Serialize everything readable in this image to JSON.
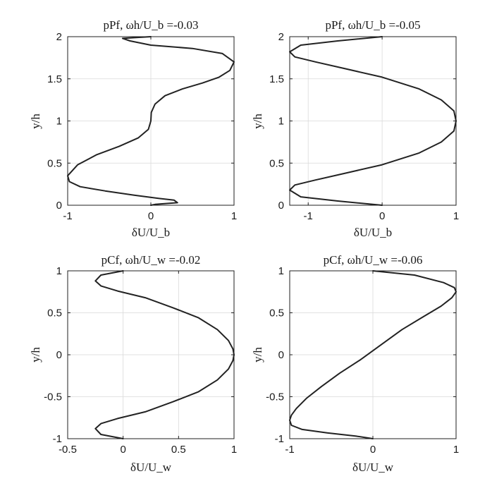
{
  "chart_data": [
    {
      "type": "line",
      "title": "pPf, ωh/U_b =-0.03",
      "xlabel": "δU/U_b",
      "ylabel": "y/h",
      "xlim": [
        -1,
        1
      ],
      "ylim": [
        0,
        2
      ],
      "grid": true,
      "xticks": [
        -1,
        0,
        1
      ],
      "xtick_labels": [
        "-1",
        "0",
        "1"
      ],
      "yticks": [
        0,
        0.5,
        1,
        1.5,
        2
      ],
      "ytick_labels": [
        "0",
        "0.5",
        "1",
        "1.5",
        "2"
      ],
      "series": [
        {
          "x": [
            0.0,
            -0.34,
            -0.25,
            0.0,
            0.5,
            0.86,
            1.0,
            0.95,
            0.82,
            0.62,
            0.38,
            0.17,
            0.05,
            0.005,
            0.0,
            -0.03,
            -0.15,
            -0.38,
            -0.65,
            -0.88,
            -1.0,
            -0.98,
            -0.85,
            -0.55,
            -0.2,
            0.1,
            0.28,
            0.32,
            0.05,
            0.0
          ],
          "y": [
            2.0,
            1.98,
            1.95,
            1.9,
            1.86,
            1.8,
            1.7,
            1.6,
            1.52,
            1.45,
            1.38,
            1.3,
            1.2,
            1.1,
            1.0,
            0.9,
            0.8,
            0.7,
            0.6,
            0.48,
            0.35,
            0.28,
            0.22,
            0.17,
            0.12,
            0.08,
            0.06,
            0.03,
            0.01,
            0.0
          ]
        }
      ]
    },
    {
      "type": "line",
      "title": "pPf, ωh/U_b =-0.05",
      "xlabel": "δU/U_b",
      "ylabel": "y/h",
      "xlim": [
        -1.25,
        1
      ],
      "ylim": [
        0,
        2
      ],
      "grid": true,
      "xticks": [
        -1,
        0,
        1
      ],
      "xtick_labels": [
        "-1",
        "0",
        "1"
      ],
      "yticks": [
        0,
        0.5,
        1,
        1.5,
        2
      ],
      "ytick_labels": [
        "0",
        "0.5",
        "1",
        "1.5",
        "2"
      ],
      "series": [
        {
          "x": [
            0.0,
            -0.6,
            -1.1,
            -1.25,
            -1.18,
            -0.9,
            -0.5,
            0.0,
            0.5,
            0.8,
            0.97,
            1.0,
            0.97,
            0.8,
            0.5,
            0.0,
            -0.5,
            -0.9,
            -1.18,
            -1.25,
            -1.1,
            -0.6,
            0.0
          ],
          "y": [
            2.0,
            1.95,
            1.9,
            1.82,
            1.76,
            1.7,
            1.62,
            1.52,
            1.38,
            1.25,
            1.12,
            1.0,
            0.88,
            0.75,
            0.62,
            0.48,
            0.38,
            0.3,
            0.24,
            0.18,
            0.1,
            0.05,
            0.0
          ]
        }
      ]
    },
    {
      "type": "line",
      "title": "pCf, ωh/U_w =-0.02",
      "xlabel": "δU/U_w",
      "ylabel": "y/h",
      "xlim": [
        -0.5,
        1
      ],
      "ylim": [
        -1,
        1
      ],
      "grid": true,
      "xticks": [
        -0.5,
        0,
        0.5,
        1
      ],
      "xtick_labels": [
        "-0.5",
        "0",
        "0.5",
        "1"
      ],
      "yticks": [
        -1,
        -0.5,
        0,
        0.5,
        1
      ],
      "ytick_labels": [
        "-1",
        "-0.5",
        "0",
        "0.5",
        "1"
      ],
      "series": [
        {
          "x": [
            0.0,
            -0.2,
            -0.25,
            -0.2,
            -0.05,
            0.2,
            0.45,
            0.68,
            0.85,
            0.95,
            0.99,
            1.0,
            0.99,
            0.95,
            0.85,
            0.68,
            0.45,
            0.2,
            -0.05,
            -0.2,
            -0.25,
            -0.2,
            0.0
          ],
          "y": [
            1.0,
            0.95,
            0.88,
            0.82,
            0.76,
            0.68,
            0.56,
            0.44,
            0.3,
            0.17,
            0.07,
            0.0,
            -0.07,
            -0.17,
            -0.3,
            -0.44,
            -0.56,
            -0.68,
            -0.76,
            -0.82,
            -0.88,
            -0.95,
            -1.0
          ]
        }
      ]
    },
    {
      "type": "line",
      "title": "pCf, ωh/U_w =-0.06",
      "xlabel": "δU/U_w",
      "ylabel": "y/h",
      "xlim": [
        -1,
        1
      ],
      "ylim": [
        -1,
        1
      ],
      "grid": true,
      "xticks": [
        -1,
        0,
        1
      ],
      "xtick_labels": [
        "-1",
        "0",
        "1"
      ],
      "yticks": [
        -1,
        -0.5,
        0,
        0.5,
        1
      ],
      "ytick_labels": [
        "-1",
        "-0.5",
        "0",
        "0.5",
        "1"
      ],
      "series": [
        {
          "x": [
            0.0,
            0.5,
            0.85,
            0.98,
            1.0,
            0.95,
            0.82,
            0.6,
            0.35,
            0.1,
            -0.15,
            -0.4,
            -0.62,
            -0.8,
            -0.92,
            -0.98,
            -1.0,
            -0.98,
            -0.85,
            -0.55,
            -0.2,
            0.0
          ],
          "y": [
            1.0,
            0.95,
            0.86,
            0.8,
            0.75,
            0.68,
            0.58,
            0.45,
            0.3,
            0.12,
            -0.06,
            -0.22,
            -0.38,
            -0.52,
            -0.64,
            -0.72,
            -0.78,
            -0.84,
            -0.89,
            -0.93,
            -0.97,
            -1.0
          ]
        }
      ]
    }
  ]
}
